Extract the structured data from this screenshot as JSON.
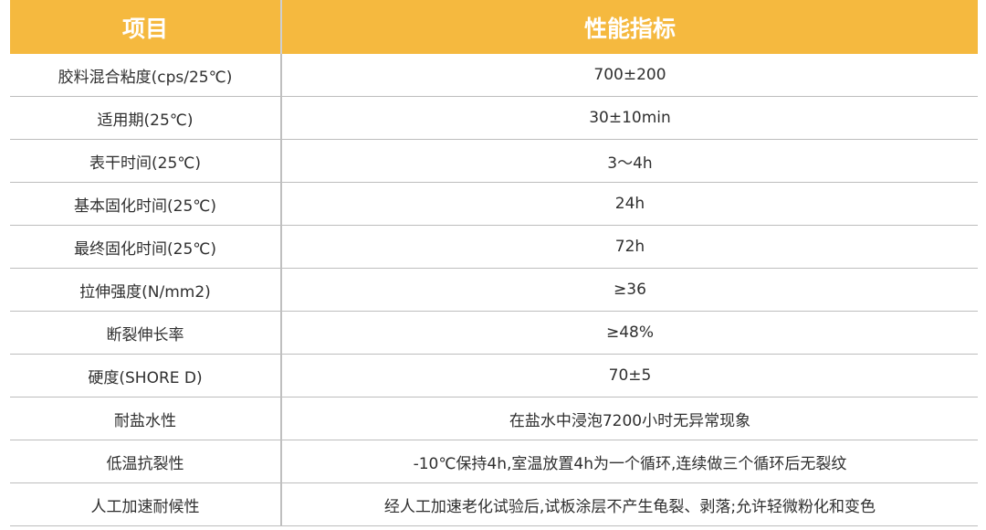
{
  "table": {
    "headers": {
      "item": "项目",
      "spec": "性能指标"
    },
    "rows": [
      {
        "item": "胶料混合粘度(cps/25℃)",
        "spec": "700±200"
      },
      {
        "item": "适用期(25℃)",
        "spec": "30±10min"
      },
      {
        "item": "表干时间(25℃)",
        "spec": "3～4h"
      },
      {
        "item": "基本固化时间(25℃)",
        "spec": "24h"
      },
      {
        "item": "最终固化时间(25℃)",
        "spec": "72h"
      },
      {
        "item": "拉伸强度(N/mm2)",
        "spec": "≥36"
      },
      {
        "item": "断裂伸长率",
        "spec": "≥48%"
      },
      {
        "item": "硬度(SHORE D)",
        "spec": "70±5"
      },
      {
        "item": "耐盐水性",
        "spec": "在盐水中浸泡7200小时无异常现象"
      },
      {
        "item": "低温抗裂性",
        "spec": "-10℃保持4h,室温放置4h为一个循环,连续做三个循环后无裂纹"
      },
      {
        "item": "人工加速耐候性",
        "spec": "经人工加速老化试验后,试板涂层不产生龟裂、剥落;允许轻微粉化和变色"
      }
    ]
  },
  "colors": {
    "header_bg": "#f5b93f",
    "header_text": "#ffffff",
    "body_text": "#2f2f2f",
    "rule": "#bdbdbd"
  }
}
